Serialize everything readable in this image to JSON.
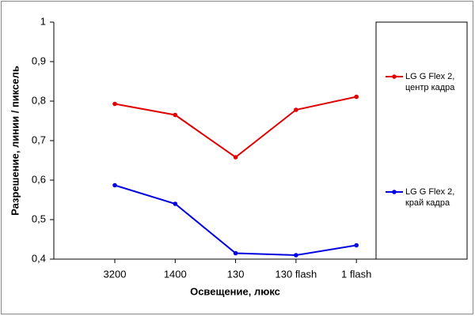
{
  "chart_data": {
    "type": "line",
    "x_label": "Освещение, люкс",
    "y_label": "Разрешение, линии / пиксель",
    "categories": [
      "3200",
      "1400",
      "130",
      "130 flash",
      "1 flash"
    ],
    "series": [
      {
        "name": "LG G Flex 2, центр кадра",
        "color": "#e00000",
        "values": [
          0.793,
          0.765,
          0.658,
          0.778,
          0.811
        ]
      },
      {
        "name": "LG G Flex 2, край кадра",
        "color": "#0000e0",
        "values": [
          0.587,
          0.54,
          0.415,
          0.41,
          0.435
        ]
      }
    ],
    "ylim": [
      0.4,
      1
    ],
    "yticks": [
      {
        "value": 0.4,
        "label": "0,4"
      },
      {
        "value": 0.5,
        "label": "0,5"
      },
      {
        "value": 0.6,
        "label": "0,6"
      },
      {
        "value": 0.7,
        "label": "0,7"
      },
      {
        "value": 0.8,
        "label": "0,8"
      },
      {
        "value": 0.9,
        "label": "0,9"
      },
      1
    ]
  }
}
